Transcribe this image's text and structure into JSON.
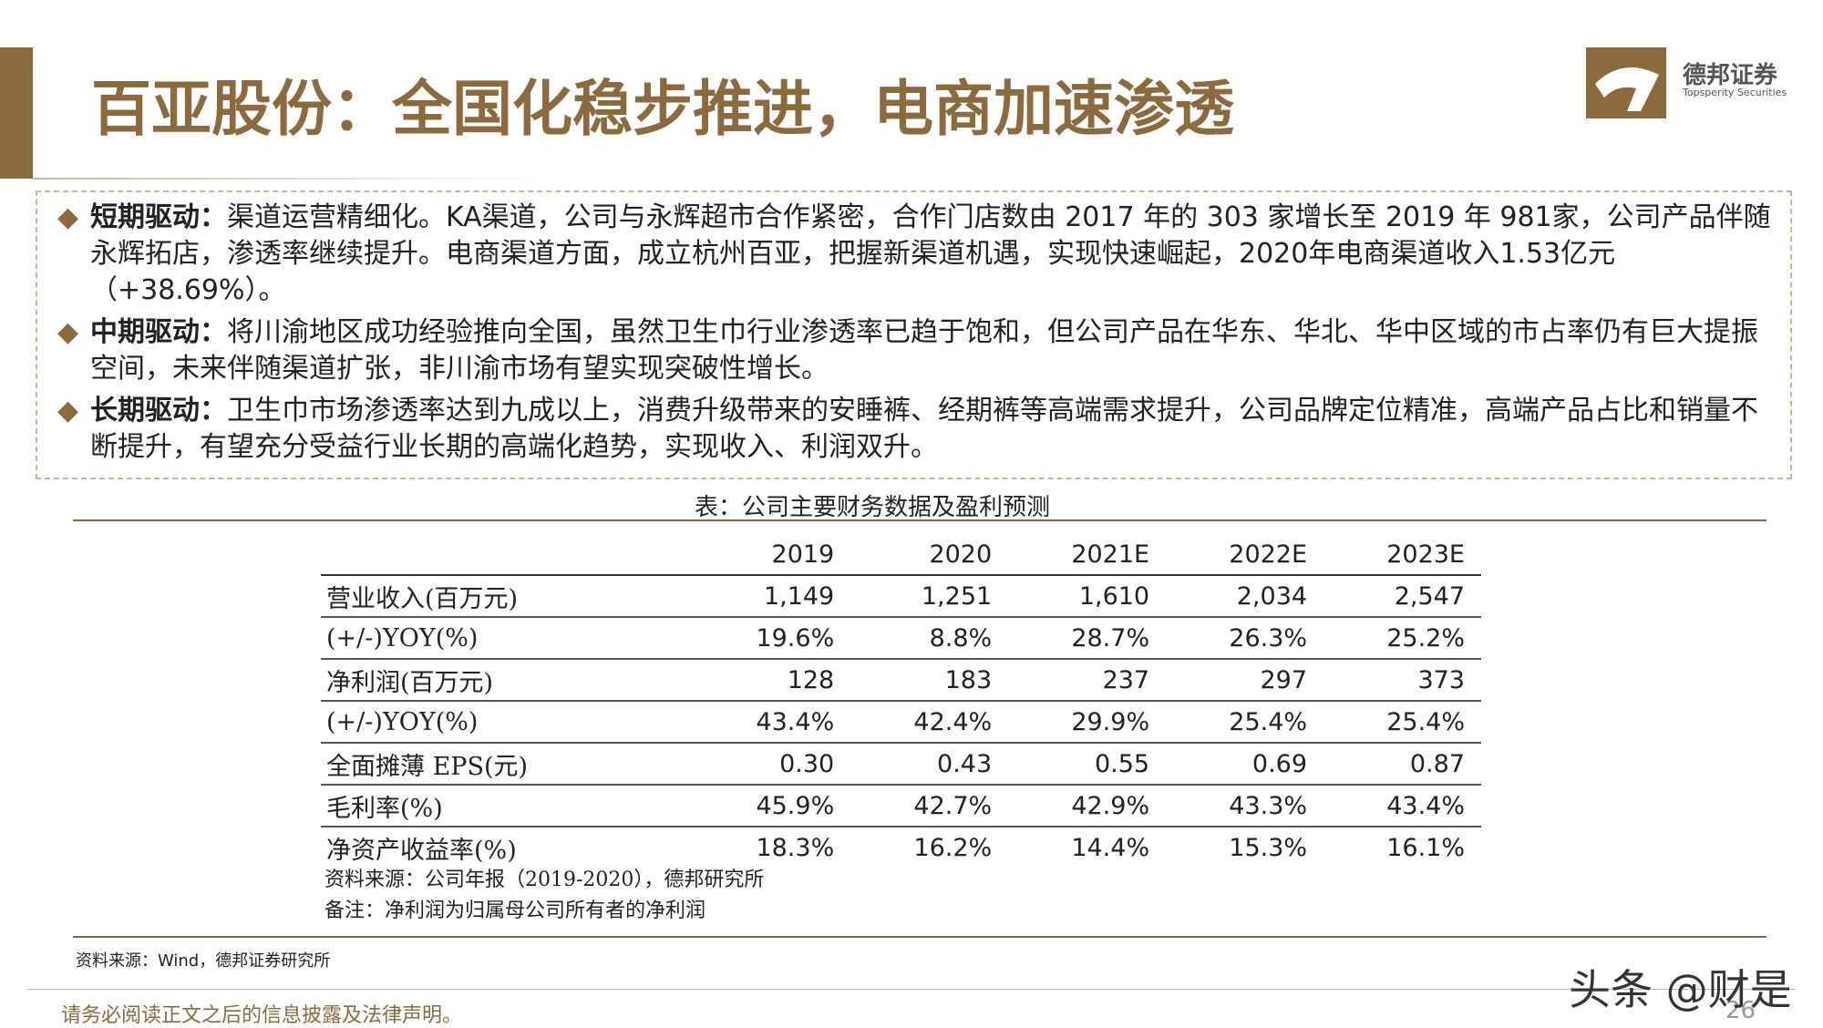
{
  "header": {
    "title": "百亚股份：全国化稳步推进，电商加速渗透",
    "logo_name": "德邦证券",
    "logo_sub": "Topsperity Securities"
  },
  "bullets": [
    {
      "label": "短期驱动：",
      "text": "渠道运营精细化。KA渠道，公司与永辉超市合作紧密，合作门店数由 2017 年的 303 家增长至 2019 年 981家，公司产品伴随永辉拓店，渗透率继续提升。电商渠道方面，成立杭州百亚，把握新渠道机遇，实现快速崛起，2020年电商渠道收入1.53亿元（+38.69%）。"
    },
    {
      "label": "中期驱动：",
      "text": "将川渝地区成功经验推向全国，虽然卫生巾行业渗透率已趋于饱和，但公司产品在华东、华北、华中区域的市占率仍有巨大提振空间，未来伴随渠道扩张，非川渝市场有望实现突破性增长。"
    },
    {
      "label": "长期驱动：",
      "text": "卫生巾市场渗透率达到九成以上，消费升级带来的安睡裤、经期裤等高端需求提升，公司品牌定位精准，高端产品占比和销量不断提升，有望充分受益行业长期的高端化趋势，实现收入、利润双升。"
    }
  ],
  "table": {
    "caption": "表：公司主要财务数据及盈利预测",
    "columns": [
      "2019",
      "2020",
      "2021E",
      "2022E",
      "2023E"
    ],
    "rows": [
      [
        "营业收入(百万元)",
        "1,149",
        "1,251",
        "1,610",
        "2,034",
        "2,547"
      ],
      [
        "(+/-)YOY(%)",
        "19.6%",
        "8.8%",
        "28.7%",
        "26.3%",
        "25.2%"
      ],
      [
        "净利润(百万元)",
        "128",
        "183",
        "237",
        "297",
        "373"
      ],
      [
        "(+/-)YOY(%)",
        "43.4%",
        "42.4%",
        "29.9%",
        "25.4%",
        "25.4%"
      ],
      [
        "全面摊薄 EPS(元)",
        "0.30",
        "0.43",
        "0.55",
        "0.69",
        "0.87"
      ],
      [
        "毛利率(%)",
        "45.9%",
        "42.7%",
        "42.9%",
        "43.3%",
        "43.4%"
      ],
      [
        "净资产收益率(%)",
        "18.3%",
        "16.2%",
        "14.4%",
        "15.3%",
        "16.1%"
      ]
    ],
    "notes": [
      "资料来源：公司年报（2019-2020），德邦研究所",
      "备注：净利润为归属母公司所有者的净利润"
    ]
  },
  "source": "资料来源：Wind，德邦证券研究所",
  "footer": {
    "disclaimer": "请务必阅读正文之后的信息披露及法律声明。",
    "page": "26",
    "watermark": "头条 @财是"
  }
}
